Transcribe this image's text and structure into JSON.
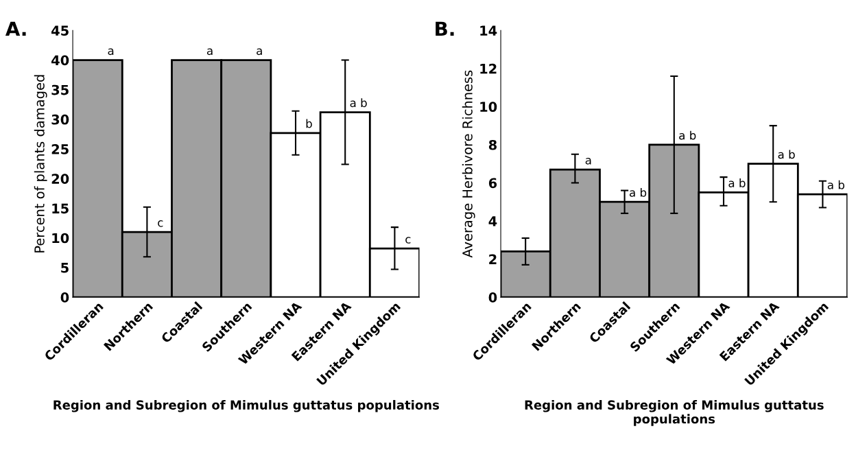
{
  "chart_data": [
    {
      "type": "bar",
      "title": "A.",
      "xlabel": "Region and Subregion of Mimulus guttatus populations",
      "ylabel": "Percent of plants damaged",
      "categories": [
        "Cordilleran",
        "Northern",
        "Coastal",
        "Southern",
        "Western NA",
        "Eastern NA",
        "United Kingdom"
      ],
      "values": [
        40,
        11,
        40,
        40,
        27.7,
        31.2,
        8.2
      ],
      "errors": [
        null,
        [
          6.8,
          15.2
        ],
        null,
        null,
        [
          24,
          31.4
        ],
        [
          22.4,
          40
        ],
        [
          4.7,
          11.8
        ]
      ],
      "colors": [
        "#a0a0a0",
        "#a0a0a0",
        "#a0a0a0",
        "#a0a0a0",
        "#ffffff",
        "#ffffff",
        "#ffffff"
      ],
      "ylim": [
        0,
        45
      ],
      "yticks": [
        0,
        5,
        10,
        15,
        20,
        25,
        30,
        35,
        40,
        45
      ],
      "grid": false,
      "legend": false,
      "annotations": [
        {
          "text": "a",
          "x": "Cordilleran",
          "y": 40
        },
        {
          "text": "c",
          "x": "Northern",
          "y": 11
        },
        {
          "text": "a",
          "x": "Coastal",
          "y": 40
        },
        {
          "text": "a",
          "x": "Southern",
          "y": 40
        },
        {
          "text": "b",
          "x": "Western NA",
          "y": 27.7
        },
        {
          "text": "a b",
          "x": "Eastern NA",
          "y": 31.2
        },
        {
          "text": "c",
          "x": "United Kingdom",
          "y": 8.2
        }
      ]
    },
    {
      "type": "bar",
      "title": "B.",
      "xlabel": "Region and Subregion of Mimulus guttatus populations",
      "ylabel": "Average Herbivore Richness",
      "categories": [
        "Cordilleran",
        "Northern",
        "Coastal",
        "Southern",
        "Western NA",
        "Eastern NA",
        "United Kingdom"
      ],
      "values": [
        2.4,
        6.7,
        5.0,
        8.0,
        5.5,
        7.0,
        5.4
      ],
      "errors": [
        [
          1.7,
          3.1
        ],
        [
          6.0,
          7.5
        ],
        [
          4.4,
          5.6
        ],
        [
          4.4,
          11.6
        ],
        [
          4.8,
          6.3
        ],
        [
          5.0,
          9.0
        ],
        [
          4.7,
          6.1
        ]
      ],
      "colors": [
        "#a0a0a0",
        "#a0a0a0",
        "#a0a0a0",
        "#a0a0a0",
        "#ffffff",
        "#ffffff",
        "#ffffff"
      ],
      "ylim": [
        0,
        14
      ],
      "yticks": [
        0,
        2,
        4,
        6,
        8,
        10,
        12,
        14
      ],
      "grid": false,
      "legend": false,
      "annotations": [
        {
          "text": "a",
          "x": "Northern",
          "y": 6.7
        },
        {
          "text": "a b",
          "x": "Coastal",
          "y": 5.0
        },
        {
          "text": "a b",
          "x": "Southern",
          "y": 8.0
        },
        {
          "text": "a b",
          "x": "Western NA",
          "y": 5.5
        },
        {
          "text": "a b",
          "x": "Eastern NA",
          "y": 7.0
        },
        {
          "text": "a b",
          "x": "United Kingdom",
          "y": 5.4
        }
      ]
    }
  ]
}
